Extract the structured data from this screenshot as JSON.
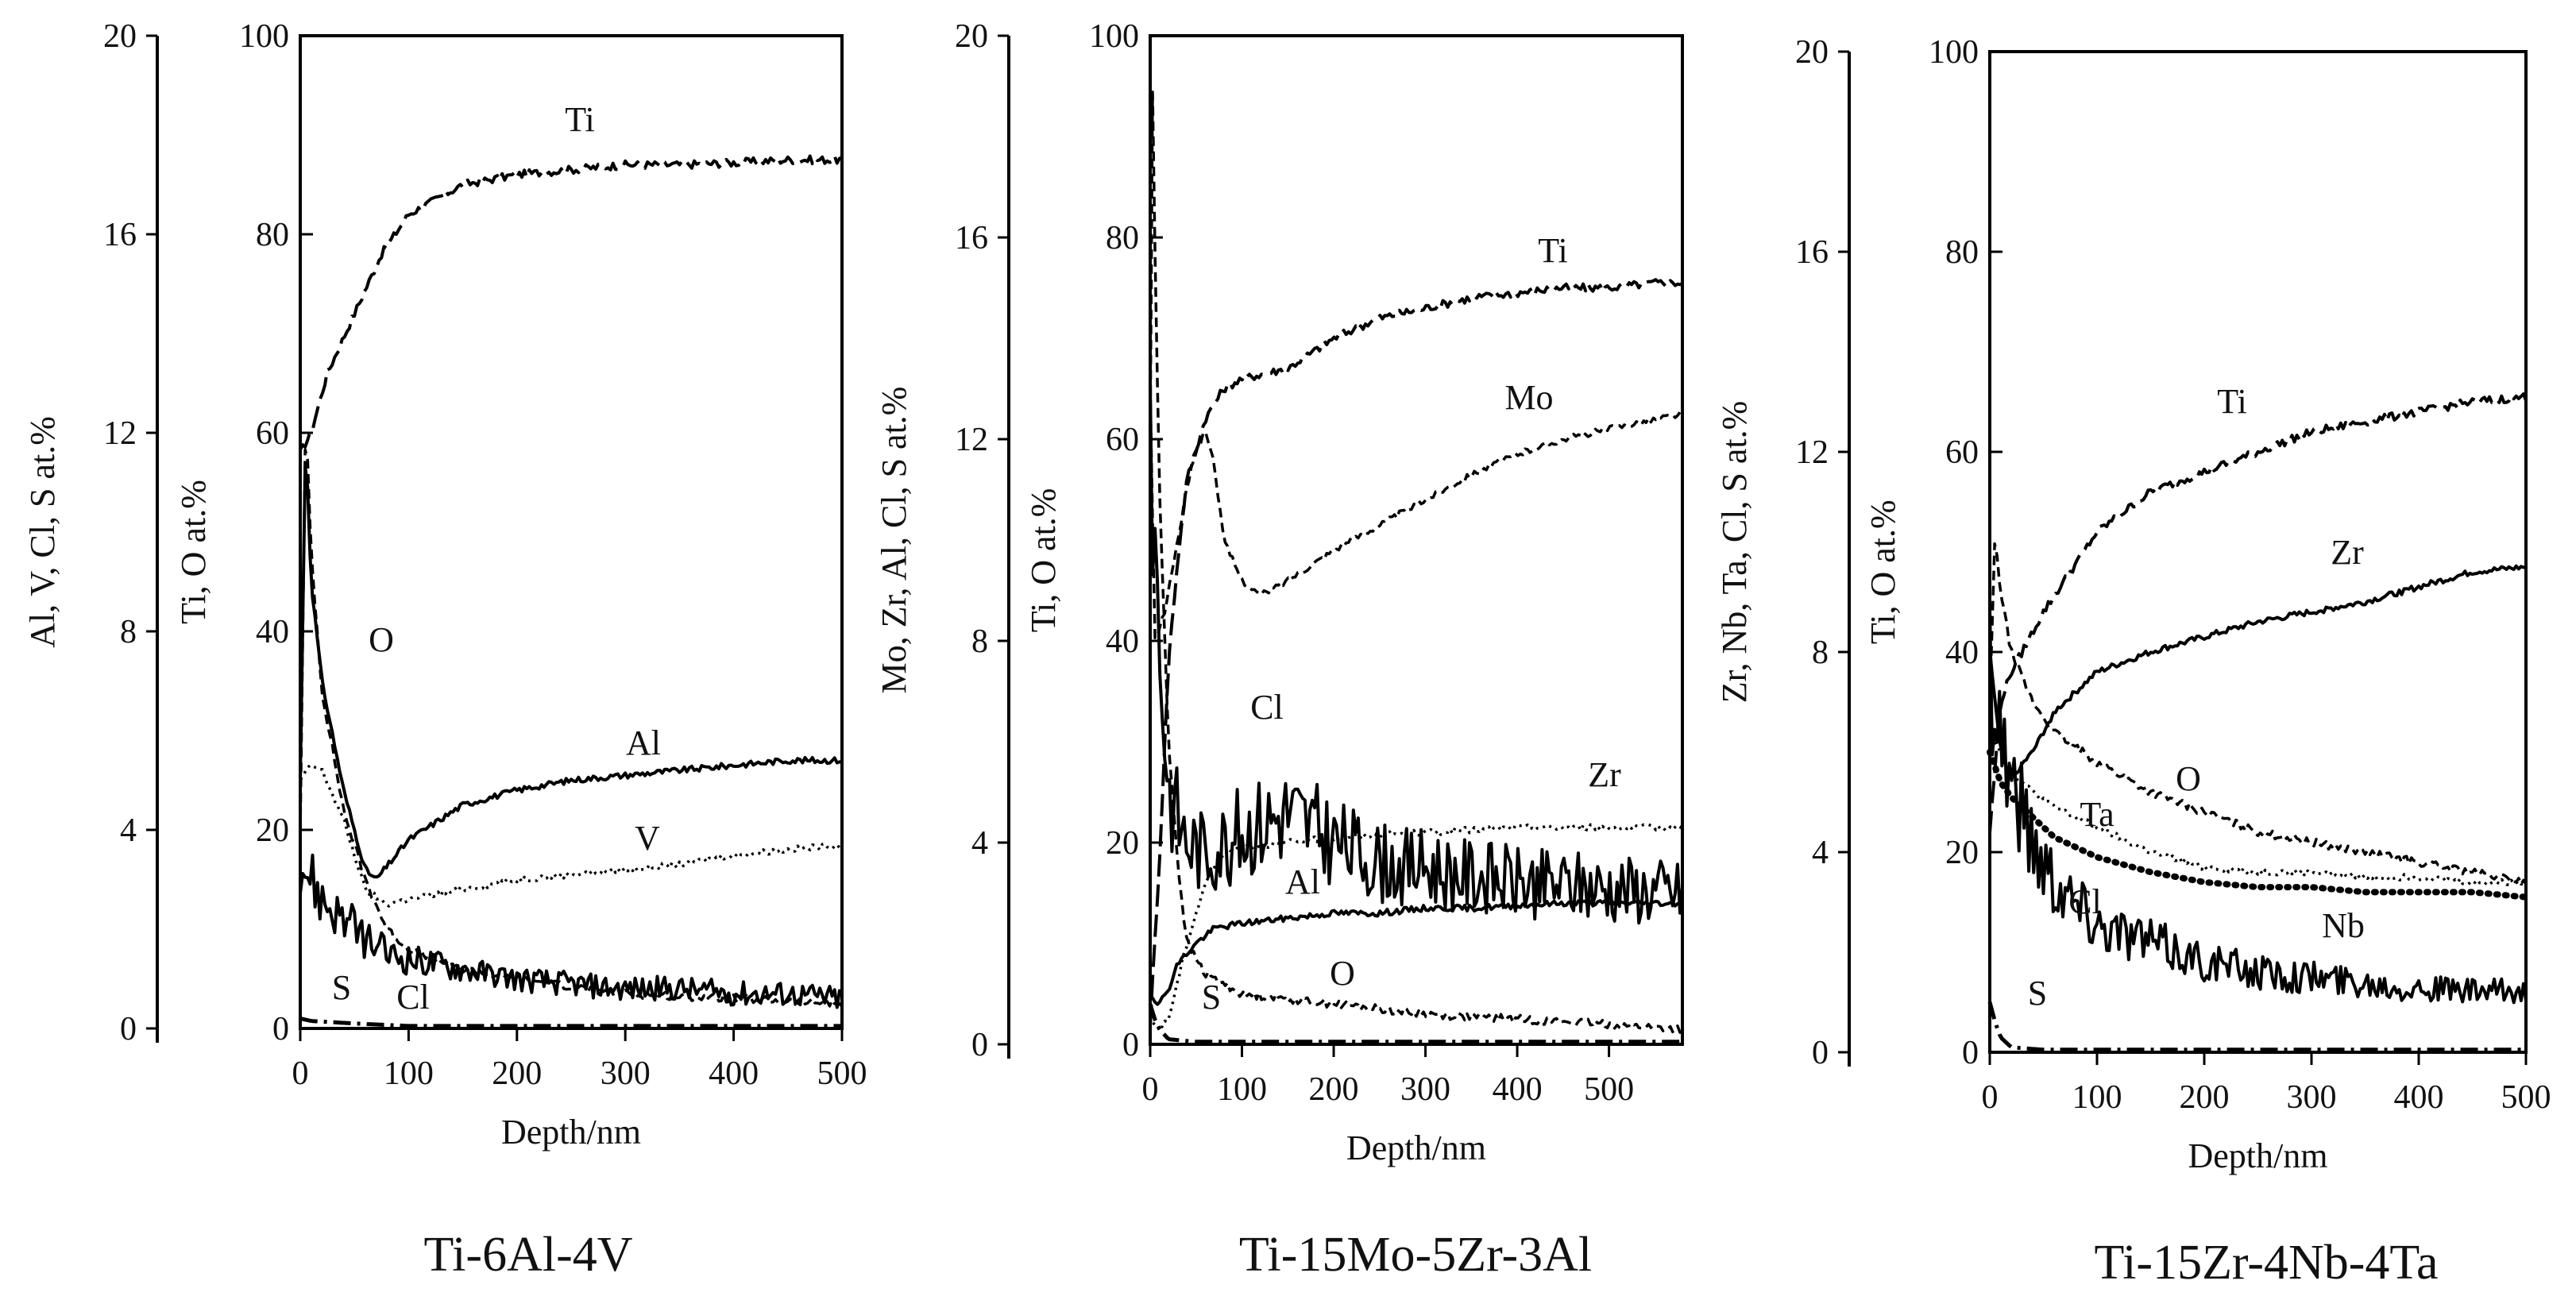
{
  "chart_data": [
    {
      "type": "line",
      "subtitle": "Ti-6Al-4V",
      "xlabel": "Depth/nm",
      "ylabel_left": "Ti, O at.%",
      "ylabel_right": "Al, V, Cl, S at.%",
      "xlim": [
        0,
        500
      ],
      "ylim_left": [
        0,
        100
      ],
      "ylim_right": [
        0,
        20
      ],
      "xticks": [
        "0",
        "100",
        "200",
        "300",
        "400",
        "500"
      ],
      "yticks_left": [
        "0",
        "20",
        "40",
        "60",
        "80",
        "100"
      ],
      "yticks_right": [
        "0",
        "4",
        "8",
        "12",
        "16",
        "20"
      ],
      "series": [
        {
          "name": "Ti",
          "axis": "left",
          "dash": "long",
          "x": [
            0,
            10,
            25,
            50,
            75,
            100,
            150,
            200,
            250,
            300,
            350,
            400,
            450,
            500
          ],
          "values": [
            58,
            60,
            66,
            72,
            78,
            82,
            85,
            86,
            86.5,
            87,
            87,
            87.2,
            87.5,
            87.5
          ]
        },
        {
          "name": "O",
          "axis": "left",
          "dash": "short",
          "x": [
            0,
            5,
            10,
            20,
            30,
            40,
            60,
            80,
            100,
            150,
            200,
            300,
            400,
            500
          ],
          "values": [
            20,
            62,
            48,
            34,
            28,
            22,
            15,
            10,
            8,
            6,
            5,
            3.5,
            3,
            2.5
          ]
        },
        {
          "name": "Al",
          "axis": "right",
          "dash": "solid",
          "x": [
            0,
            5,
            10,
            20,
            40,
            60,
            70,
            100,
            150,
            200,
            250,
            300,
            350,
            400,
            450,
            500
          ],
          "values": [
            5,
            12,
            9,
            7,
            4.8,
            3.2,
            3.0,
            3.8,
            4.5,
            4.8,
            5.0,
            5.1,
            5.2,
            5.3,
            5.4,
            5.4
          ]
        },
        {
          "name": "V",
          "axis": "right",
          "dash": "dot",
          "x": [
            0,
            10,
            20,
            40,
            60,
            80,
            100,
            150,
            200,
            250,
            300,
            350,
            400,
            450,
            500
          ],
          "values": [
            5,
            5.3,
            5.2,
            4.2,
            2.8,
            2.5,
            2.6,
            2.8,
            3.0,
            3.1,
            3.2,
            3.3,
            3.5,
            3.6,
            3.7
          ]
        },
        {
          "name": "Cl",
          "axis": "right",
          "dash": "solid-noisy",
          "x": [
            0,
            10,
            20,
            40,
            60,
            80,
            100,
            150,
            200,
            250,
            300,
            350,
            400,
            450,
            500
          ],
          "values": [
            3.5,
            3.0,
            2.6,
            2.2,
            1.8,
            1.5,
            1.4,
            1.2,
            1.0,
            0.9,
            0.8,
            0.8,
            0.7,
            0.7,
            0.6
          ]
        },
        {
          "name": "S",
          "axis": "right",
          "dash": "dot-dash",
          "x": [
            0,
            10,
            50,
            100,
            200,
            300,
            400,
            500
          ],
          "values": [
            0.2,
            0.15,
            0.1,
            0.05,
            0.05,
            0.05,
            0.05,
            0.05
          ]
        }
      ]
    },
    {
      "type": "line",
      "subtitle": "Ti-15Mo-5Zr-3Al",
      "xlabel": "Depth/nm",
      "ylabel_left": "Ti, O at.%",
      "ylabel_right": "Mo, Zr, Al, Cl, S at.%",
      "xlim": [
        0,
        580
      ],
      "ylim_left": [
        0,
        100
      ],
      "ylim_right": [
        0,
        20
      ],
      "xticks": [
        "0",
        "100",
        "200",
        "300",
        "400",
        "500"
      ],
      "yticks_left": [
        "0",
        "20",
        "40",
        "60",
        "80",
        "100"
      ],
      "yticks_right": [
        "0",
        "4",
        "8",
        "12",
        "16",
        "20"
      ],
      "series": [
        {
          "name": "Ti",
          "axis": "left",
          "dash": "long",
          "x": [
            0,
            10,
            20,
            30,
            40,
            60,
            80,
            100,
            150,
            200,
            250,
            300,
            350,
            400,
            450,
            500,
            550,
            580
          ],
          "values": [
            2,
            18,
            38,
            48,
            56,
            62,
            65,
            66,
            67,
            70,
            72,
            73,
            74,
            74.5,
            75,
            75,
            75.5,
            75.5
          ]
        },
        {
          "name": "O",
          "axis": "left",
          "dash": "short",
          "x": [
            0,
            3,
            5,
            10,
            20,
            30,
            40,
            60,
            80,
            100,
            150,
            200,
            300,
            400,
            500,
            580
          ],
          "values": [
            60,
            99,
            80,
            55,
            30,
            18,
            10,
            7,
            6,
            5,
            4.5,
            4,
            3,
            2.5,
            2,
            1.5
          ]
        },
        {
          "name": "Mo",
          "axis": "right",
          "dash": "short",
          "x": [
            0,
            5,
            15,
            30,
            45,
            60,
            70,
            80,
            100,
            120,
            150,
            200,
            250,
            300,
            350,
            400,
            450,
            500,
            550,
            580
          ],
          "values": [
            13,
            8,
            8.5,
            10,
            11.5,
            12.2,
            11.5,
            10,
            9.2,
            8.9,
            9.2,
            9.8,
            10.3,
            10.8,
            11.3,
            11.7,
            12,
            12.2,
            12.4,
            12.5
          ]
        },
        {
          "name": "Zr",
          "axis": "right",
          "dash": "dot",
          "x": [
            0,
            10,
            20,
            40,
            60,
            80,
            100,
            150,
            200,
            300,
            400,
            500,
            580
          ],
          "values": [
            0.5,
            0.3,
            0.5,
            2.0,
            3.2,
            3.8,
            3.9,
            4.0,
            4.1,
            4.2,
            4.3,
            4.3,
            4.3
          ]
        },
        {
          "name": "Al",
          "axis": "right",
          "dash": "solid",
          "x": [
            0,
            10,
            20,
            30,
            50,
            70,
            100,
            150,
            200,
            250,
            300,
            350,
            400,
            450,
            500,
            580
          ],
          "values": [
            1.0,
            0.8,
            1.1,
            1.6,
            2.0,
            2.3,
            2.4,
            2.5,
            2.6,
            2.6,
            2.7,
            2.7,
            2.75,
            2.8,
            2.8,
            2.8
          ]
        },
        {
          "name": "Cl",
          "axis": "right",
          "dash": "solid-noisy",
          "x": [
            0,
            5,
            10,
            20,
            40,
            60,
            100,
            150,
            200,
            250,
            300,
            400,
            500,
            580
          ],
          "values": [
            13,
            10,
            8,
            5,
            4,
            3.8,
            4.2,
            4.6,
            4.0,
            3.6,
            3.5,
            3.2,
            3.1,
            3.0
          ]
        },
        {
          "name": "S",
          "axis": "right",
          "dash": "dot-dash",
          "x": [
            0,
            5,
            10,
            20,
            50,
            100,
            200,
            300,
            400,
            500,
            580
          ],
          "values": [
            0.8,
            0.5,
            0.3,
            0.1,
            0.05,
            0.05,
            0.05,
            0.05,
            0.05,
            0.05,
            0.05
          ]
        }
      ]
    },
    {
      "type": "line",
      "subtitle": "Ti-15Zr-4Nb-4Ta",
      "xlabel": "Depth/nm",
      "ylabel_left": "Ti, O at.%",
      "ylabel_right": "Zr, Nb, Ta, Cl, S at.%",
      "xlim": [
        0,
        500
      ],
      "ylim_left": [
        0,
        100
      ],
      "ylim_right": [
        0,
        20
      ],
      "xticks": [
        "0",
        "100",
        "200",
        "300",
        "400",
        "500"
      ],
      "yticks_left": [
        "0",
        "20",
        "40",
        "60",
        "80",
        "100"
      ],
      "yticks_right": [
        "0",
        "4",
        "8",
        "12",
        "16",
        "20"
      ],
      "series": [
        {
          "name": "Ti",
          "axis": "left",
          "dash": "long",
          "x": [
            0,
            10,
            20,
            30,
            50,
            75,
            100,
            150,
            200,
            250,
            300,
            350,
            400,
            450,
            500
          ],
          "values": [
            22,
            35,
            38,
            40,
            44,
            48,
            52,
            56,
            58,
            60,
            62,
            63,
            64,
            65,
            65.5
          ]
        },
        {
          "name": "O",
          "axis": "left",
          "dash": "short",
          "x": [
            0,
            5,
            10,
            20,
            40,
            60,
            100,
            150,
            200,
            250,
            300,
            350,
            400,
            450,
            500
          ],
          "values": [
            35,
            52,
            46,
            40,
            35,
            32,
            29,
            26,
            24,
            22,
            21,
            20,
            19,
            18,
            17
          ]
        },
        {
          "name": "Zr",
          "axis": "right",
          "dash": "solid",
          "x": [
            0,
            10,
            20,
            40,
            60,
            80,
            100,
            150,
            200,
            250,
            300,
            350,
            400,
            450,
            500
          ],
          "values": [
            8,
            6.0,
            5.5,
            6.0,
            6.8,
            7.2,
            7.6,
            8.0,
            8.3,
            8.6,
            8.8,
            9.0,
            9.3,
            9.6,
            9.7
          ]
        },
        {
          "name": "Ta",
          "axis": "right",
          "dash": "dot",
          "x": [
            0,
            10,
            20,
            40,
            60,
            100,
            150,
            200,
            250,
            300,
            350,
            400,
            450,
            500
          ],
          "values": [
            6.5,
            6.0,
            5.6,
            5.2,
            4.9,
            4.5,
            4.0,
            3.7,
            3.6,
            3.6,
            3.5,
            3.5,
            3.4,
            3.4
          ]
        },
        {
          "name": "Nb",
          "axis": "right",
          "dash": "heavy-dot",
          "x": [
            0,
            10,
            20,
            40,
            60,
            100,
            150,
            200,
            250,
            300,
            350,
            400,
            450,
            500
          ],
          "values": [
            6.0,
            5.4,
            5.1,
            4.7,
            4.3,
            3.9,
            3.6,
            3.4,
            3.3,
            3.3,
            3.2,
            3.2,
            3.2,
            3.1
          ]
        },
        {
          "name": "Cl",
          "axis": "right",
          "dash": "solid-noisy",
          "x": [
            0,
            10,
            20,
            40,
            60,
            80,
            100,
            150,
            200,
            250,
            300,
            350,
            400,
            450,
            500
          ],
          "values": [
            8,
            6.5,
            5.5,
            4.2,
            3.5,
            3.0,
            2.6,
            2.2,
            1.8,
            1.6,
            1.5,
            1.4,
            1.3,
            1.2,
            1.2
          ]
        },
        {
          "name": "S",
          "axis": "right",
          "dash": "dot-dash",
          "x": [
            0,
            5,
            10,
            20,
            50,
            100,
            200,
            300,
            400,
            500
          ],
          "values": [
            1.0,
            0.6,
            0.3,
            0.1,
            0.05,
            0.05,
            0.05,
            0.05,
            0.05,
            0.05
          ]
        }
      ]
    }
  ]
}
